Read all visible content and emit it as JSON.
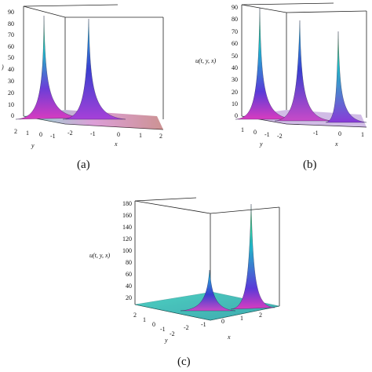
{
  "figure": {
    "panels": [
      {
        "id": "a",
        "caption": "(a)",
        "z_axis_label": ")",
        "z_ticks": [
          "0",
          "10",
          "20",
          "30",
          "40",
          "50",
          "60",
          "70",
          "80",
          "90"
        ],
        "y_axis_label": "y",
        "y_ticks": [
          "2",
          "1",
          "0",
          "-1"
        ],
        "x_axis_label": "x",
        "x_ticks": [
          "-2",
          "-1",
          "0",
          "1",
          "2"
        ],
        "peaks": 2
      },
      {
        "id": "b",
        "caption": "(b)",
        "z_axis_label": "u(t, y, x)",
        "z_ticks": [
          "0",
          "10",
          "20",
          "30",
          "40",
          "50",
          "60",
          "70",
          "80",
          "90"
        ],
        "y_axis_label": "y",
        "y_ticks": [
          "1",
          "0",
          "-1",
          "-2"
        ],
        "x_axis_label": "x",
        "x_ticks": [
          "-1",
          "0",
          "1"
        ],
        "peaks": 3
      },
      {
        "id": "c",
        "caption": "(c)",
        "z_axis_label": "u(t, y, x)",
        "z_ticks": [
          "20",
          "40",
          "60",
          "80",
          "100",
          "120",
          "140",
          "160",
          "180"
        ],
        "y_axis_label": "y",
        "y_ticks": [
          "2",
          "1",
          "0",
          "-1",
          "-2"
        ],
        "x_axis_label": "x",
        "x_ticks": [
          "-2",
          "-1",
          "0",
          "1",
          "2"
        ],
        "peaks": 2
      }
    ]
  }
}
